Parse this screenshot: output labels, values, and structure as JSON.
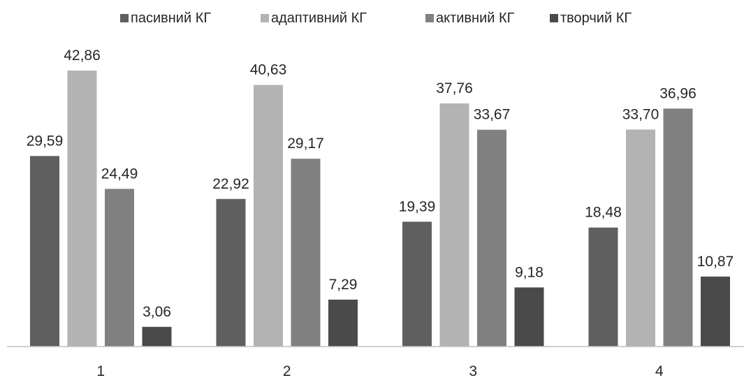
{
  "chart_data": {
    "type": "bar",
    "categories": [
      "1",
      "2",
      "3",
      "4"
    ],
    "series": [
      {
        "name": "пасивний КГ",
        "color": "#5f5f5f",
        "values": [
          29.59,
          22.92,
          19.39,
          18.48
        ],
        "labels": [
          "29,59",
          "22,92",
          "19,39",
          "18,48"
        ]
      },
      {
        "name": "адаптивний КГ",
        "color": "#b3b3b3",
        "values": [
          42.86,
          40.63,
          37.76,
          33.7
        ],
        "labels": [
          "42,86",
          "40,63",
          "37,76",
          "33,70"
        ]
      },
      {
        "name": "активний КГ",
        "color": "#808080",
        "values": [
          24.49,
          29.17,
          33.67,
          36.96
        ],
        "labels": [
          "24,49",
          "29,17",
          "33,67",
          "36,96"
        ]
      },
      {
        "name": "творчий КГ",
        "color": "#4a4a4a",
        "values": [
          3.06,
          7.29,
          9.18,
          10.87
        ],
        "labels": [
          "3,06",
          "7,29",
          "9,18",
          "10,87"
        ]
      }
    ],
    "ylim": [
      0,
      43
    ],
    "grid": false,
    "legend": "top-center",
    "xlabel": "",
    "ylabel": "",
    "title": ""
  }
}
